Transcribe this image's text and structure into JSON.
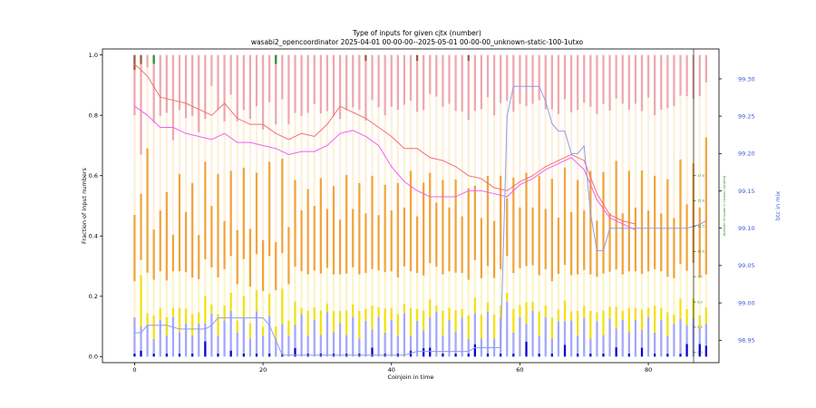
{
  "chart_data": {
    "type": "bar",
    "title": "Type of inputs for given cjtx (number)",
    "subtitle": "wasabi2_opencoordinator 2025-04-01 00-00-00--2025-05-01 00-00-00_unknown-static-100-1utxo",
    "xlabel": "Coinjoin in time",
    "ylabel": "Fraction of input numbers",
    "ylabel_right": "btc in mix",
    "ylabel_inner": "Number of inputs in coinjoin (scaled)",
    "xlim": [
      -5,
      91
    ],
    "ylim": [
      -0.02,
      1.02
    ],
    "ylim_right": [
      98.92,
      99.34
    ],
    "ylim_inner": [
      -1.0,
      30.0
    ],
    "x_ticks": [
      0,
      20,
      40,
      60,
      80
    ],
    "y_ticks": [
      0.0,
      0.2,
      0.4,
      0.6,
      0.8,
      1.0
    ],
    "y_tick_labels": [
      "0.0",
      "0.2",
      "0.4",
      "0.6",
      "0.8",
      "1.0"
    ],
    "right_ticks": [
      98.95,
      99.0,
      99.05,
      99.1,
      99.15,
      99.2,
      99.25,
      99.3
    ],
    "right_tick_labels": [
      "98.95",
      "99.00",
      "99.05",
      "99.10",
      "99.15",
      "99.20",
      "99.25",
      "99.30"
    ],
    "inner_ticks": [
      0.0,
      2.5,
      5.0,
      7.5,
      10.0,
      12.5,
      15.0,
      17.5
    ],
    "inner_tick_labels": [
      "0.0",
      "2.5",
      "5.0",
      "7.5",
      "10.0",
      "12.5",
      "15.0",
      "17.5"
    ],
    "grid": false,
    "legend": "none",
    "n_coinjoins": 90,
    "segment_colors": [
      "#0000d8",
      "#a4a8f8",
      "#f4e00e",
      "#fbf5c8",
      "#f2a43a",
      "#fdf0da",
      "#efa8ac",
      "#2e8b2e",
      "#9a5a3e"
    ],
    "line_colors": {
      "red": "#f07070",
      "magenta": "#f060f0",
      "blue": "#8f9cec"
    },
    "series": [
      {
        "values": [
          0.01,
          0.02,
          0.0,
          0.01,
          0.0,
          0.01,
          0.0,
          0.01,
          0.0,
          0.01,
          0.0,
          0.05,
          0.0,
          0.01,
          0.0,
          0.02,
          0.0,
          0.01,
          0.0,
          0.01,
          0.0,
          0.01,
          0.0,
          0.01,
          0.0,
          0.03,
          0.0,
          0.01,
          0.0,
          0.01,
          0.0,
          0.01,
          0.0,
          0.01,
          0.0,
          0.01,
          0.0,
          0.03,
          0.0,
          0.01,
          0.0,
          0.01,
          0.0,
          0.02,
          0.0,
          0.03,
          0.03,
          0.0,
          0.01,
          0.0,
          0.01,
          0.0,
          0.01,
          0.04,
          0.0,
          0.01,
          0.0,
          0.01,
          0.0,
          0.01,
          0.0,
          0.05,
          0.0,
          0.01,
          0.0,
          0.01,
          0.0,
          0.04,
          0.0,
          0.01,
          0.0,
          0.01,
          0.0,
          0.01,
          0.0,
          0.03,
          0.0,
          0.01,
          0.0,
          0.03,
          0.0,
          0.01,
          0.0,
          0.01,
          0.0,
          0.01,
          0.04,
          0.0,
          0.04,
          0.04
        ]
      },
      {
        "values": [
          0.12,
          0.08,
          0.1,
          0.05,
          0.12,
          0.06,
          0.13,
          0.07,
          0.11,
          0.06,
          0.12,
          0.06,
          0.14,
          0.06,
          0.12,
          0.13,
          0.08,
          0.12,
          0.06,
          0.14,
          0.07,
          0.12,
          0.06,
          0.1,
          0.07,
          0.08,
          0.14,
          0.06,
          0.12,
          0.06,
          0.15,
          0.07,
          0.11,
          0.06,
          0.13,
          0.05,
          0.12,
          0.06,
          0.13,
          0.07,
          0.12,
          0.06,
          0.14,
          0.05,
          0.12,
          0.06,
          0.1,
          0.14,
          0.06,
          0.12,
          0.07,
          0.13,
          0.05,
          0.1,
          0.06,
          0.14,
          0.06,
          0.12,
          0.18,
          0.07,
          0.13,
          0.06,
          0.15,
          0.06,
          0.13,
          0.05,
          0.12,
          0.08,
          0.12,
          0.06,
          0.13,
          0.05,
          0.12,
          0.06,
          0.13,
          0.06,
          0.12,
          0.07,
          0.12,
          0.06,
          0.13,
          0.07,
          0.12,
          0.06,
          0.11,
          0.12,
          0.06,
          0.13,
          0.05,
          0.08
        ]
      },
      {
        "values": [
          0.0,
          0.17,
          0.04,
          0.08,
          0.04,
          0.06,
          0.03,
          0.08,
          0.05,
          0.07,
          0.04,
          0.09,
          0.03,
          0.07,
          0.05,
          0.06,
          0.04,
          0.07,
          0.05,
          0.07,
          0.03,
          0.07,
          0.04,
          0.12,
          0.05,
          0.08,
          0.02,
          0.08,
          0.04,
          0.08,
          0.03,
          0.07,
          0.04,
          0.08,
          0.04,
          0.09,
          0.04,
          0.08,
          0.03,
          0.08,
          0.04,
          0.07,
          0.03,
          0.09,
          0.04,
          0.07,
          0.06,
          0.02,
          0.08,
          0.04,
          0.07,
          0.03,
          0.08,
          0.05,
          0.08,
          0.03,
          0.08,
          0.04,
          0.03,
          0.08,
          0.04,
          0.07,
          0.03,
          0.08,
          0.04,
          0.07,
          0.04,
          0.07,
          0.03,
          0.08,
          0.04,
          0.09,
          0.03,
          0.08,
          0.04,
          0.07,
          0.03,
          0.08,
          0.04,
          0.07,
          0.03,
          0.09,
          0.04,
          0.08,
          0.03,
          0.07,
          0.05,
          0.07,
          0.04,
          0.06
        ]
      },
      {
        "values": [
          0.12,
          0.05,
          0.13,
          0.12,
          0.12,
          0.12,
          0.12,
          0.12,
          0.12,
          0.12,
          0.12,
          0.12,
          0.12,
          0.12,
          0.12,
          0.12,
          0.12,
          0.12,
          0.12,
          0.12,
          0.12,
          0.12,
          0.12,
          0.12,
          0.12,
          0.12,
          0.12,
          0.12,
          0.12,
          0.12,
          0.12,
          0.12,
          0.12,
          0.12,
          0.12,
          0.12,
          0.12,
          0.12,
          0.12,
          0.12,
          0.12,
          0.12,
          0.12,
          0.12,
          0.12,
          0.12,
          0.12,
          0.12,
          0.12,
          0.12,
          0.12,
          0.12,
          0.12,
          0.12,
          0.12,
          0.12,
          0.12,
          0.12,
          0.12,
          0.12,
          0.12,
          0.12,
          0.12,
          0.12,
          0.12,
          0.12,
          0.12,
          0.12,
          0.12,
          0.12,
          0.12,
          0.12,
          0.12,
          0.12,
          0.12,
          0.12,
          0.12,
          0.12,
          0.12,
          0.12,
          0.12,
          0.12,
          0.12,
          0.12,
          0.12,
          0.12,
          0.12,
          0.12,
          0.12,
          0.12
        ]
      },
      {
        "values": [
          0.22,
          0.22,
          0.4,
          0.17,
          0.2,
          0.29,
          0.12,
          0.32,
          0.2,
          0.31,
          0.16,
          0.32,
          0.2,
          0.34,
          0.16,
          0.28,
          0.18,
          0.3,
          0.19,
          0.27,
          0.17,
          0.3,
          0.16,
          0.32,
          0.19,
          0.3,
          0.2,
          0.28,
          0.21,
          0.31,
          0.2,
          0.29,
          0.18,
          0.32,
          0.19,
          0.3,
          0.2,
          0.31,
          0.18,
          0.29,
          0.2,
          0.31,
          0.19,
          0.33,
          0.19,
          0.32,
          0.3,
          0.2,
          0.31,
          0.21,
          0.3,
          0.19,
          0.31,
          0.24,
          0.2,
          0.3,
          0.19,
          0.31,
          0.19,
          0.32,
          0.2,
          0.31,
          0.19,
          0.33,
          0.2,
          0.34,
          0.19,
          0.33,
          0.21,
          0.31,
          0.2,
          0.34,
          0.19,
          0.33,
          0.2,
          0.35,
          0.2,
          0.33,
          0.21,
          0.35,
          0.2,
          0.31,
          0.19,
          0.33,
          0.2,
          0.36,
          0.21,
          0.34,
          0.22,
          0.5
        ]
      },
      {
        "values": [
          0.33,
          0.13,
          0.26,
          0.36,
          0.31,
          0.26,
          0.31,
          0.21,
          0.31,
          0.22,
          0.37,
          0.14,
          0.39,
          0.21,
          0.33,
          0.25,
          0.36,
          0.19,
          0.36,
          0.22,
          0.37,
          0.19,
          0.39,
          0.2,
          0.34,
          0.23,
          0.31,
          0.25,
          0.33,
          0.21,
          0.33,
          0.23,
          0.33,
          0.21,
          0.33,
          0.24,
          0.31,
          0.25,
          0.35,
          0.23,
          0.34,
          0.24,
          0.33,
          0.23,
          0.35,
          0.25,
          0.26,
          0.33,
          0.24,
          0.34,
          0.22,
          0.35,
          0.23,
          0.24,
          0.36,
          0.26,
          0.35,
          0.24,
          0.32,
          0.22,
          0.34,
          0.22,
          0.34,
          0.25,
          0.33,
          0.23,
          0.35,
          0.23,
          0.33,
          0.23,
          0.36,
          0.21,
          0.36,
          0.22,
          0.35,
          0.2,
          0.36,
          0.2,
          0.34,
          0.2,
          0.37,
          0.2,
          0.34,
          0.24,
          0.37,
          0.22,
          0.34,
          0.22,
          0.35,
          0.2
        ]
      },
      {
        "values": [
          0.15,
          0.3,
          0.04,
          0.2,
          0.2,
          0.19,
          0.28,
          0.18,
          0.21,
          0.2,
          0.28,
          0.21,
          0.1,
          0.18,
          0.22,
          0.13,
          0.22,
          0.18,
          0.21,
          0.17,
          0.25,
          0.15,
          0.2,
          0.15,
          0.23,
          0.2,
          0.2,
          0.19,
          0.16,
          0.19,
          0.19,
          0.2,
          0.21,
          0.18,
          0.17,
          0.18,
          0.2,
          0.15,
          0.17,
          0.2,
          0.17,
          0.18,
          0.16,
          0.15,
          0.17,
          0.19,
          0.13,
          0.13,
          0.17,
          0.16,
          0.18,
          0.19,
          0.2,
          0.18,
          0.18,
          0.14,
          0.2,
          0.16,
          0.15,
          0.19,
          0.16,
          0.17,
          0.16,
          0.15,
          0.18,
          0.18,
          0.2,
          0.15,
          0.19,
          0.18,
          0.16,
          0.17,
          0.2,
          0.16,
          0.19,
          0.14,
          0.16,
          0.18,
          0.16,
          0.19,
          0.14,
          0.2,
          0.18,
          0.18,
          0.17,
          0.14,
          0.13,
          0.15,
          0.13,
          0.1
        ]
      },
      {
        "values": [
          0.0,
          0.0,
          0.0,
          0.03,
          0.0,
          0.0,
          0.0,
          0.0,
          0.0,
          0.0,
          0.0,
          0.0,
          0.0,
          0.0,
          0.0,
          0.0,
          0.0,
          0.0,
          0.0,
          0.0,
          0.0,
          0.0,
          0.03,
          0.0,
          0.0,
          0.0,
          0.0,
          0.0,
          0.0,
          0.0,
          0.0,
          0.0,
          0.0,
          0.0,
          0.0,
          0.0,
          0.0,
          0.0,
          0.0,
          0.0,
          0.0,
          0.0,
          0.0,
          0.0,
          0.0,
          0.0,
          0.0,
          0.0,
          0.0,
          0.0,
          0.0,
          0.0,
          0.0,
          0.0,
          0.0,
          0.0,
          0.0,
          0.0,
          0.0,
          0.0,
          0.0,
          0.0,
          0.0,
          0.0,
          0.0,
          0.0,
          0.0,
          0.0,
          0.0,
          0.0,
          0.0,
          0.0,
          0.0,
          0.0,
          0.0,
          0.0,
          0.0,
          0.0,
          0.0,
          0.0,
          0.0,
          0.0,
          0.0,
          0.0,
          0.0,
          0.0,
          0.0,
          0.0,
          0.0,
          0.0
        ]
      },
      {
        "values": [
          0.05,
          0.03,
          0.0,
          0.0,
          0.0,
          0.0,
          0.0,
          0.0,
          0.0,
          0.0,
          0.0,
          0.0,
          0.0,
          0.0,
          0.0,
          0.0,
          0.0,
          0.0,
          0.0,
          0.0,
          0.0,
          0.0,
          0.0,
          0.0,
          0.0,
          0.0,
          0.0,
          0.0,
          0.0,
          0.0,
          0.0,
          0.0,
          0.0,
          0.0,
          0.0,
          0.0,
          0.02,
          0.0,
          0.0,
          0.0,
          0.0,
          0.0,
          0.0,
          0.0,
          0.02,
          0.0,
          0.0,
          0.0,
          0.0,
          0.0,
          0.0,
          0.0,
          0.02,
          0.0,
          0.0,
          0.0,
          0.0,
          0.0,
          0.0,
          0.0,
          0.0,
          0.0,
          0.0,
          0.0,
          0.0,
          0.0,
          0.0,
          0.0,
          0.0,
          0.0,
          0.0,
          0.0,
          0.0,
          0.0,
          0.0,
          0.0,
          0.0,
          0.0,
          0.0,
          0.0,
          0.0,
          0.0,
          0.0,
          0.0,
          0.0,
          0.0,
          0.0,
          0.0,
          0.0,
          0.0
        ]
      }
    ],
    "lines": [
      {
        "color": "red",
        "x": [
          0,
          2,
          4,
          6,
          8,
          10,
          12,
          14,
          16,
          18,
          20,
          22,
          24,
          26,
          28,
          30,
          32,
          34,
          36,
          38,
          40,
          42,
          44,
          46,
          48,
          50,
          52,
          54,
          56,
          58,
          60,
          62,
          64,
          66,
          68,
          70,
          72,
          74,
          76,
          78
        ],
        "values": [
          0.97,
          0.93,
          0.86,
          0.85,
          0.84,
          0.82,
          0.8,
          0.84,
          0.79,
          0.77,
          0.77,
          0.74,
          0.72,
          0.74,
          0.73,
          0.77,
          0.83,
          0.81,
          0.79,
          0.76,
          0.73,
          0.69,
          0.69,
          0.66,
          0.65,
          0.63,
          0.6,
          0.59,
          0.56,
          0.55,
          0.58,
          0.6,
          0.63,
          0.65,
          0.67,
          0.65,
          0.54,
          0.47,
          0.45,
          0.44
        ]
      },
      {
        "color": "magenta",
        "x": [
          0,
          2,
          4,
          6,
          8,
          10,
          12,
          14,
          16,
          18,
          20,
          22,
          24,
          26,
          28,
          30,
          32,
          34,
          36,
          38,
          40,
          42,
          44,
          46,
          48,
          50,
          52,
          54,
          56,
          58,
          60,
          62,
          64,
          66,
          68,
          70,
          72,
          74,
          76,
          78
        ],
        "values": [
          0.83,
          0.8,
          0.76,
          0.76,
          0.74,
          0.73,
          0.72,
          0.74,
          0.71,
          0.71,
          0.7,
          0.69,
          0.67,
          0.68,
          0.68,
          0.7,
          0.74,
          0.75,
          0.73,
          0.7,
          0.63,
          0.58,
          0.55,
          0.53,
          0.53,
          0.53,
          0.55,
          0.55,
          0.54,
          0.53,
          0.57,
          0.59,
          0.62,
          0.64,
          0.66,
          0.62,
          0.52,
          0.46,
          0.44,
          0.42
        ]
      },
      {
        "color": "blue",
        "axis": "right",
        "x": [
          0,
          1,
          2,
          3,
          5,
          7,
          9,
          11,
          12,
          13,
          15,
          17,
          19,
          20,
          21,
          22,
          23,
          24,
          26,
          28,
          30,
          32,
          34,
          36,
          38,
          40,
          42,
          44,
          46,
          48,
          50,
          52,
          53,
          55,
          57,
          58,
          59,
          61,
          63,
          64,
          65,
          66,
          67,
          68,
          69,
          70,
          71,
          72,
          73,
          74,
          76,
          78,
          80,
          82,
          84,
          86,
          88,
          89
        ],
        "values": [
          98.96,
          98.96,
          98.97,
          98.97,
          98.97,
          98.965,
          98.965,
          98.965,
          98.97,
          98.98,
          98.98,
          98.98,
          98.98,
          98.98,
          98.97,
          98.95,
          98.93,
          98.93,
          98.93,
          98.93,
          98.93,
          98.93,
          98.93,
          98.93,
          98.93,
          98.93,
          98.93,
          98.935,
          98.935,
          98.935,
          98.935,
          98.935,
          98.94,
          98.94,
          98.94,
          99.25,
          99.29,
          99.29,
          99.29,
          99.27,
          99.24,
          99.23,
          99.23,
          99.2,
          99.2,
          99.21,
          99.12,
          99.07,
          99.07,
          99.1,
          99.1,
          99.1,
          99.1,
          99.1,
          99.1,
          99.1,
          99.105,
          99.11
        ]
      }
    ]
  }
}
